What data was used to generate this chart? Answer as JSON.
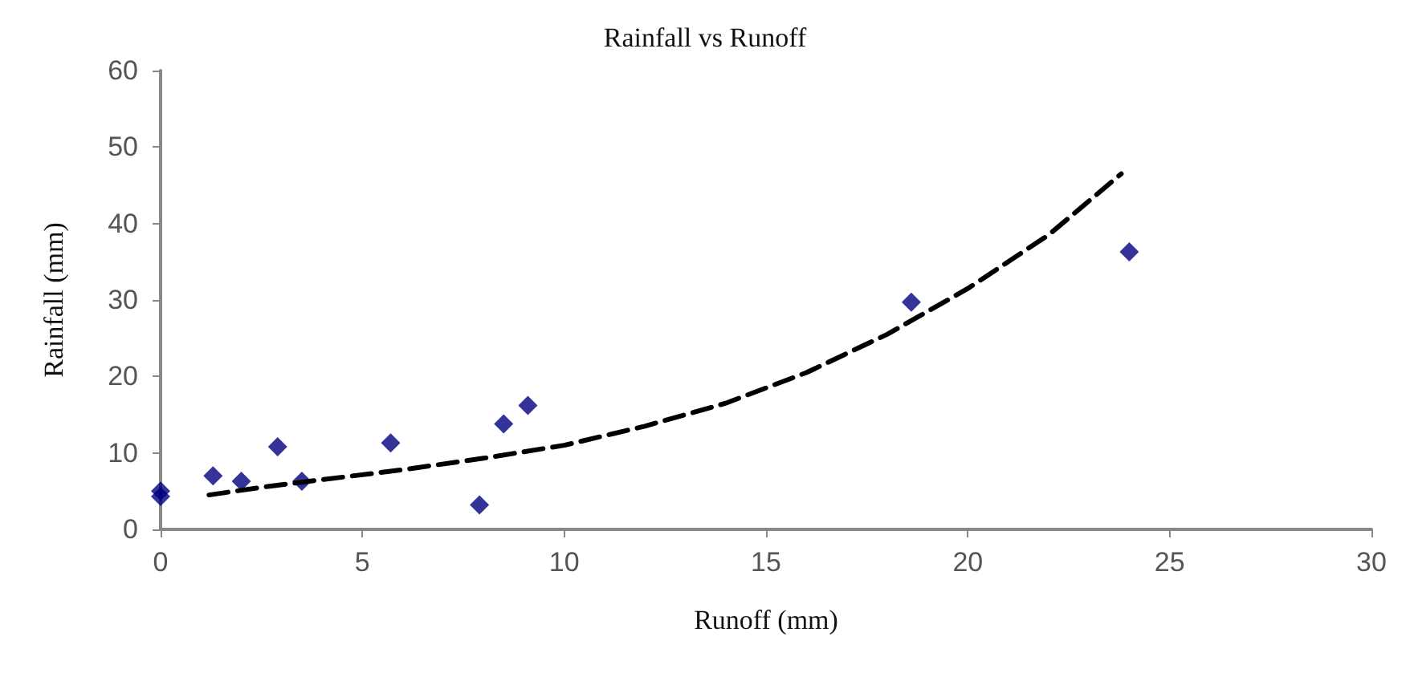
{
  "chart_data": {
    "type": "scatter",
    "title": "Rainfall vs Runoff",
    "xlabel": "Runoff (mm)",
    "ylabel": "Rainfall (mm)",
    "xlim": [
      0,
      30
    ],
    "xticks": [
      0,
      5,
      10,
      15,
      20,
      25,
      30
    ],
    "ylim": [
      0,
      60
    ],
    "yticks": [
      0,
      10,
      20,
      30,
      40,
      50,
      60
    ],
    "grid": false,
    "marker": "diamond",
    "series": [
      {
        "color": "#000080",
        "x": [
          0,
          0,
          1.3,
          2,
          2.9,
          3.5,
          5.7,
          7.9,
          8.5,
          9.1,
          18.6,
          24
        ],
        "values": [
          5,
          4.3,
          7,
          6.3,
          10.8,
          6.3,
          11.3,
          3.2,
          13.8,
          16.2,
          29.7,
          36.3
        ]
      },
      {
        "type": "line",
        "color": "#000000",
        "line_style": "dashed",
        "marker": "none",
        "x": [
          1.2,
          2.5,
          4,
          6,
          8,
          10,
          12,
          14,
          16,
          18,
          20,
          22,
          23.8
        ],
        "values": [
          4.5,
          5.5,
          6.5,
          7.8,
          9.3,
          11,
          13.5,
          16.5,
          20.5,
          25.5,
          31.5,
          38.5,
          46.5
        ]
      }
    ]
  }
}
